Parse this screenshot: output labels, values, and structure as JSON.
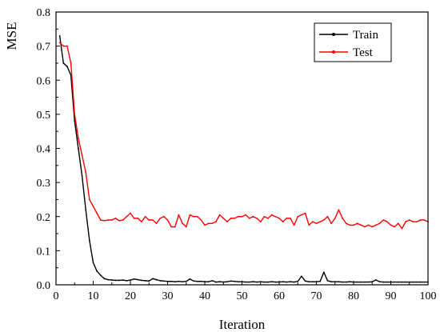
{
  "chart_data": {
    "type": "line",
    "title": "",
    "xlabel": "Iteration",
    "ylabel": "MSE",
    "xlim": [
      0,
      100
    ],
    "ylim": [
      0,
      0.8
    ],
    "x_ticks": [
      0,
      10,
      20,
      30,
      40,
      50,
      60,
      70,
      80,
      90,
      100
    ],
    "x_tick_labels": [
      "0",
      "10",
      "20",
      "30",
      "40",
      "50",
      "60",
      "70",
      "80",
      "90",
      "100"
    ],
    "y_ticks": [
      0,
      0.1,
      0.2,
      0.3,
      0.4,
      0.5,
      0.6,
      0.7,
      0.8
    ],
    "y_tick_labels": [
      "0.0",
      "0.1",
      "0.2",
      "0.3",
      "0.4",
      "0.5",
      "0.6",
      "0.7",
      "0.8"
    ],
    "grid": false,
    "legend": "top-right",
    "x": [
      1,
      2,
      3,
      4,
      5,
      6,
      7,
      8,
      9,
      10,
      11,
      12,
      13,
      14,
      15,
      16,
      17,
      18,
      19,
      20,
      21,
      22,
      23,
      24,
      25,
      26,
      27,
      28,
      29,
      30,
      31,
      32,
      33,
      34,
      35,
      36,
      37,
      38,
      39,
      40,
      41,
      42,
      43,
      44,
      45,
      46,
      47,
      48,
      49,
      50,
      51,
      52,
      53,
      54,
      55,
      56,
      57,
      58,
      59,
      60,
      61,
      62,
      63,
      64,
      65,
      66,
      67,
      68,
      69,
      70,
      71,
      72,
      73,
      74,
      75,
      76,
      77,
      78,
      79,
      80,
      81,
      82,
      83,
      84,
      85,
      86,
      87,
      88,
      89,
      90,
      91,
      92,
      93,
      94,
      95,
      96,
      97,
      98,
      99,
      100
    ],
    "series": [
      {
        "name": "Train",
        "color": "#000000",
        "values": [
          0.73,
          0.65,
          0.64,
          0.615,
          0.48,
          0.4,
          0.32,
          0.22,
          0.13,
          0.065,
          0.04,
          0.028,
          0.018,
          0.015,
          0.014,
          0.013,
          0.013,
          0.014,
          0.012,
          0.014,
          0.017,
          0.015,
          0.013,
          0.012,
          0.011,
          0.018,
          0.015,
          0.012,
          0.011,
          0.01,
          0.01,
          0.009,
          0.01,
          0.009,
          0.01,
          0.017,
          0.011,
          0.01,
          0.01,
          0.009,
          0.009,
          0.012,
          0.008,
          0.009,
          0.008,
          0.009,
          0.011,
          0.01,
          0.009,
          0.009,
          0.008,
          0.008,
          0.009,
          0.008,
          0.009,
          0.008,
          0.008,
          0.009,
          0.008,
          0.008,
          0.009,
          0.008,
          0.009,
          0.008,
          0.01,
          0.025,
          0.011,
          0.009,
          0.009,
          0.009,
          0.01,
          0.037,
          0.012,
          0.009,
          0.009,
          0.009,
          0.008,
          0.008,
          0.009,
          0.008,
          0.008,
          0.008,
          0.008,
          0.008,
          0.009,
          0.014,
          0.009,
          0.008,
          0.008,
          0.008,
          0.008,
          0.008,
          0.008,
          0.008,
          0.008,
          0.008,
          0.008,
          0.008,
          0.008,
          0.008
        ]
      },
      {
        "name": "Test",
        "color": "#ff0000",
        "values": [
          0.71,
          0.7,
          0.7,
          0.65,
          0.5,
          0.43,
          0.38,
          0.33,
          0.25,
          0.23,
          0.21,
          0.19,
          0.188,
          0.19,
          0.19,
          0.195,
          0.188,
          0.19,
          0.2,
          0.21,
          0.195,
          0.195,
          0.185,
          0.2,
          0.19,
          0.19,
          0.18,
          0.195,
          0.2,
          0.19,
          0.17,
          0.17,
          0.205,
          0.18,
          0.17,
          0.205,
          0.2,
          0.2,
          0.19,
          0.175,
          0.18,
          0.18,
          0.185,
          0.205,
          0.195,
          0.185,
          0.195,
          0.195,
          0.2,
          0.2,
          0.205,
          0.195,
          0.2,
          0.195,
          0.185,
          0.2,
          0.195,
          0.205,
          0.2,
          0.195,
          0.185,
          0.195,
          0.195,
          0.175,
          0.2,
          0.205,
          0.21,
          0.175,
          0.185,
          0.18,
          0.185,
          0.19,
          0.2,
          0.18,
          0.195,
          0.22,
          0.195,
          0.18,
          0.175,
          0.175,
          0.18,
          0.175,
          0.17,
          0.175,
          0.17,
          0.175,
          0.18,
          0.19,
          0.185,
          0.175,
          0.17,
          0.18,
          0.165,
          0.185,
          0.19,
          0.185,
          0.185,
          0.19,
          0.19,
          0.185
        ]
      }
    ]
  }
}
